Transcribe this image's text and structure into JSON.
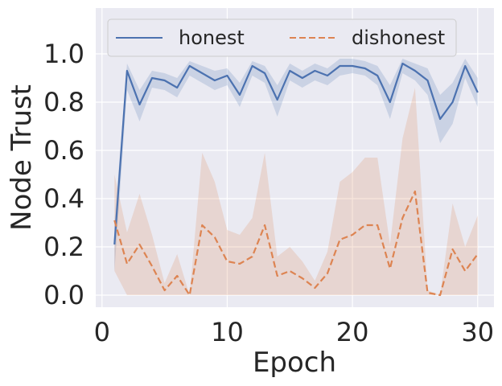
{
  "chart_data": {
    "type": "line",
    "xlabel": "Epoch",
    "ylabel": "Node Trust",
    "xlim": [
      -0.5,
      31.3
    ],
    "ylim": [
      -0.05,
      1.19
    ],
    "xticks": [
      0,
      10,
      20,
      30
    ],
    "xtick_labels": [
      "0",
      "10",
      "20",
      "30"
    ],
    "yticks": [
      0.0,
      0.2,
      0.4,
      0.6,
      0.8,
      1.0
    ],
    "ytick_labels": [
      "0.0",
      "0.2",
      "0.4",
      "0.6",
      "0.8",
      "1.0"
    ],
    "grid": true,
    "legend_position": "top",
    "x": [
      1,
      2,
      3,
      4,
      5,
      6,
      7,
      8,
      9,
      10,
      11,
      12,
      13,
      14,
      15,
      16,
      17,
      18,
      19,
      20,
      21,
      22,
      23,
      24,
      25,
      26,
      27,
      28,
      29,
      30
    ],
    "series": [
      {
        "name": "honest",
        "color": "#4c72b0",
        "linestyle": "solid",
        "values": [
          0.21,
          0.93,
          0.79,
          0.9,
          0.89,
          0.86,
          0.95,
          0.92,
          0.89,
          0.91,
          0.83,
          0.95,
          0.92,
          0.81,
          0.93,
          0.9,
          0.93,
          0.91,
          0.95,
          0.95,
          0.94,
          0.91,
          0.8,
          0.96,
          0.93,
          0.89,
          0.73,
          0.8,
          0.95,
          0.84
        ],
        "band_lower": [
          0.1,
          0.85,
          0.72,
          0.86,
          0.85,
          0.82,
          0.91,
          0.88,
          0.85,
          0.87,
          0.78,
          0.91,
          0.88,
          0.74,
          0.89,
          0.86,
          0.89,
          0.87,
          0.91,
          0.92,
          0.91,
          0.87,
          0.73,
          0.92,
          0.89,
          0.83,
          0.63,
          0.71,
          0.9,
          0.78
        ],
        "band_upper": [
          0.3,
          0.96,
          0.85,
          0.93,
          0.92,
          0.9,
          0.97,
          0.95,
          0.93,
          0.94,
          0.88,
          0.97,
          0.95,
          0.87,
          0.96,
          0.93,
          0.96,
          0.94,
          0.98,
          0.98,
          0.97,
          0.95,
          0.87,
          0.98,
          0.96,
          0.94,
          0.83,
          0.88,
          0.98,
          0.9
        ]
      },
      {
        "name": "dishonest",
        "color": "#dd8452",
        "linestyle": "dashed",
        "values": [
          0.31,
          0.13,
          0.21,
          0.12,
          0.02,
          0.08,
          0.0,
          0.29,
          0.24,
          0.14,
          0.13,
          0.16,
          0.29,
          0.08,
          0.1,
          0.07,
          0.03,
          0.09,
          0.23,
          0.25,
          0.29,
          0.29,
          0.11,
          0.32,
          0.43,
          0.01,
          0.0,
          0.19,
          0.1,
          0.17
        ],
        "band_lower": [
          0.1,
          0.0,
          0.0,
          0.0,
          0.0,
          0.0,
          0.0,
          0.0,
          0.0,
          0.0,
          0.0,
          0.0,
          0.0,
          0.0,
          0.0,
          0.0,
          0.0,
          0.0,
          0.0,
          0.0,
          0.0,
          0.0,
          0.0,
          0.0,
          0.0,
          0.0,
          0.0,
          0.0,
          0.0,
          0.0
        ],
        "band_upper": [
          0.5,
          0.26,
          0.42,
          0.25,
          0.05,
          0.17,
          0.0,
          0.59,
          0.47,
          0.27,
          0.25,
          0.32,
          0.59,
          0.16,
          0.2,
          0.14,
          0.06,
          0.18,
          0.47,
          0.51,
          0.57,
          0.57,
          0.21,
          0.65,
          0.86,
          0.02,
          0.0,
          0.38,
          0.2,
          0.33
        ]
      }
    ]
  }
}
